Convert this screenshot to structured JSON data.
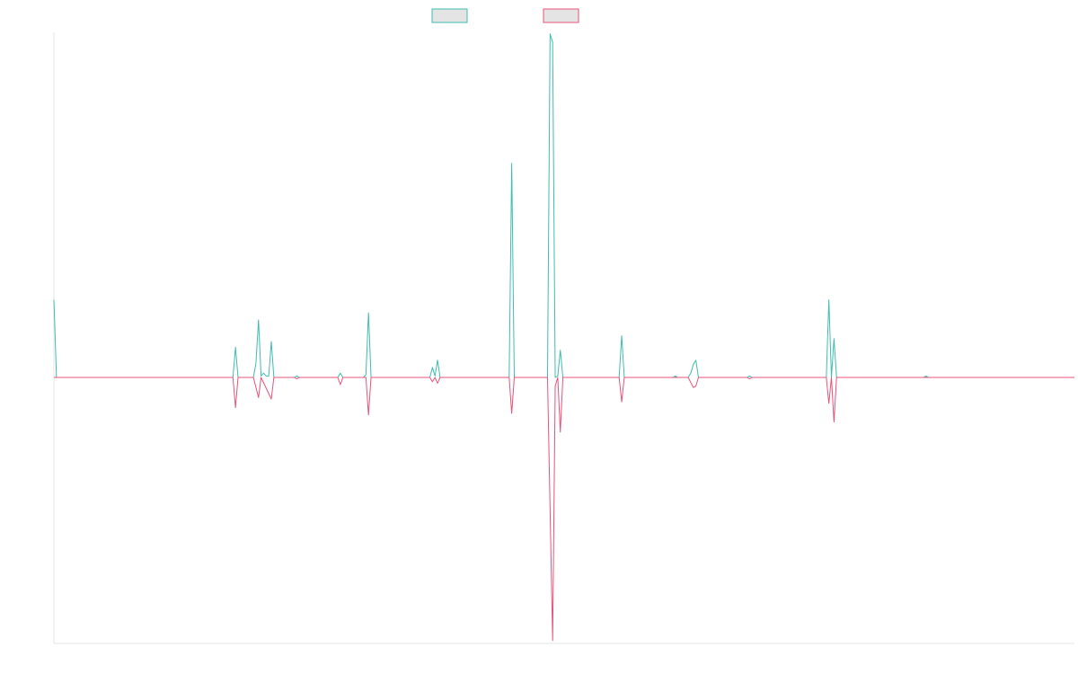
{
  "chart_data": {
    "type": "line",
    "title": "",
    "xlabel": "",
    "ylabel": "",
    "legend": {
      "position": "top-center",
      "labels_visible": false
    },
    "grid": false,
    "ylim": [
      -100,
      110
    ],
    "x_count": 400,
    "series": [
      {
        "color": "#3fbdb0",
        "points": [
          [
            0,
            27
          ],
          [
            1,
            0
          ],
          [
            70,
            0
          ],
          [
            71,
            10.5
          ],
          [
            72,
            0
          ],
          [
            78,
            0
          ],
          [
            79,
            5
          ],
          [
            80,
            20
          ],
          [
            81,
            0.5
          ],
          [
            82,
            1.5
          ],
          [
            83,
            0.5
          ],
          [
            84,
            0.5
          ],
          [
            85,
            12.5
          ],
          [
            86,
            0
          ],
          [
            94,
            0
          ],
          [
            95,
            0.5
          ],
          [
            96,
            0
          ],
          [
            111,
            0
          ],
          [
            112,
            1.5
          ],
          [
            113,
            0
          ],
          [
            121,
            0
          ],
          [
            122,
            1
          ],
          [
            123,
            22.5
          ],
          [
            124,
            0
          ],
          [
            147,
            0
          ],
          [
            148,
            3.5
          ],
          [
            149,
            0.5
          ],
          [
            150,
            6
          ],
          [
            151,
            0
          ],
          [
            178,
            0
          ],
          [
            179,
            74.5
          ],
          [
            180,
            0
          ],
          [
            193,
            0
          ],
          [
            194,
            119.5
          ],
          [
            195,
            116.5
          ],
          [
            196,
            0
          ],
          [
            197,
            0.5
          ],
          [
            198,
            9.5
          ],
          [
            199,
            0
          ],
          [
            221,
            0
          ],
          [
            222,
            14.5
          ],
          [
            223,
            0
          ],
          [
            242,
            0
          ],
          [
            243,
            0.5
          ],
          [
            244,
            0
          ],
          [
            248,
            0
          ],
          [
            249,
            1.5
          ],
          [
            250,
            4.5
          ],
          [
            251,
            6
          ],
          [
            252,
            0
          ],
          [
            271,
            0
          ],
          [
            272,
            0.5
          ],
          [
            273,
            0
          ],
          [
            302,
            0
          ],
          [
            303,
            27
          ],
          [
            304,
            0
          ],
          [
            305,
            13.5
          ],
          [
            306,
            0
          ],
          [
            340,
            0
          ],
          [
            341,
            0.5
          ],
          [
            342,
            0
          ],
          [
            399,
            0
          ]
        ]
      },
      {
        "color": "#e8537a",
        "points": [
          [
            0,
            0
          ],
          [
            70,
            0
          ],
          [
            71,
            -10.5
          ],
          [
            72,
            0
          ],
          [
            78,
            0
          ],
          [
            80,
            -7
          ],
          [
            81,
            0
          ],
          [
            85,
            -7.5
          ],
          [
            86,
            0
          ],
          [
            94,
            0
          ],
          [
            95,
            -0.5
          ],
          [
            96,
            0
          ],
          [
            111,
            0
          ],
          [
            112,
            -2.5
          ],
          [
            113,
            0
          ],
          [
            122,
            0
          ],
          [
            123,
            -13
          ],
          [
            124,
            0
          ],
          [
            147,
            0
          ],
          [
            148,
            -1.5
          ],
          [
            149,
            0
          ],
          [
            150,
            -2
          ],
          [
            151,
            0
          ],
          [
            178,
            0
          ],
          [
            179,
            -12.5
          ],
          [
            180,
            0
          ],
          [
            193,
            0
          ],
          [
            195,
            -91.5
          ],
          [
            196,
            -3
          ],
          [
            197,
            0
          ],
          [
            198,
            -19
          ],
          [
            199,
            0
          ],
          [
            221,
            0
          ],
          [
            222,
            -8.5
          ],
          [
            223,
            0
          ],
          [
            248,
            0
          ],
          [
            250,
            -3.5
          ],
          [
            251,
            -3
          ],
          [
            252,
            0
          ],
          [
            271,
            0
          ],
          [
            272,
            -0.5
          ],
          [
            273,
            0
          ],
          [
            302,
            0
          ],
          [
            303,
            -9
          ],
          [
            304,
            0
          ],
          [
            305,
            -15.5
          ],
          [
            306,
            0
          ],
          [
            399,
            0
          ]
        ]
      }
    ]
  }
}
